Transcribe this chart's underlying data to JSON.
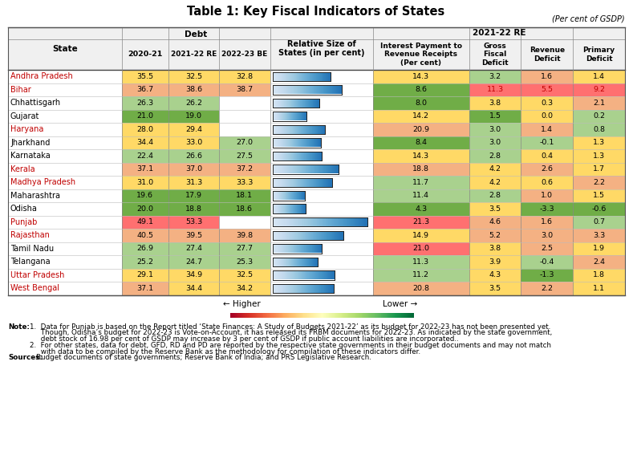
{
  "title": "Table 1: Key Fiscal Indicators of States",
  "subtitle": "(Per cent of GSDP)",
  "states": [
    "Andhra Pradesh",
    "Bihar",
    "Chhattisgarh",
    "Gujarat",
    "Haryana",
    "Jharkhand",
    "Karnataka",
    "Kerala",
    "Madhya Pradesh",
    "Maharashtra",
    "Odisha",
    "Punjab",
    "Rajasthan",
    "Tamil Nadu",
    "Telangana",
    "Uttar Pradesh",
    "West Bengal"
  ],
  "state_colors": [
    "#c00000",
    "#c00000",
    "#000000",
    "#000000",
    "#c00000",
    "#000000",
    "#000000",
    "#c00000",
    "#c00000",
    "#000000",
    "#000000",
    "#c00000",
    "#c00000",
    "#000000",
    "#000000",
    "#c00000",
    "#c00000"
  ],
  "debt_2021": [
    35.5,
    36.7,
    26.3,
    21.0,
    28.0,
    34.4,
    22.4,
    37.1,
    31.0,
    19.6,
    20.0,
    49.1,
    40.5,
    26.9,
    25.2,
    29.1,
    37.1
  ],
  "debt_2122": [
    32.5,
    38.6,
    26.2,
    19.0,
    29.4,
    33.0,
    26.6,
    37.0,
    31.3,
    17.9,
    18.8,
    53.3,
    39.5,
    27.4,
    24.7,
    34.9,
    34.4
  ],
  "debt_2223": [
    32.8,
    38.7,
    null,
    null,
    null,
    27.0,
    27.5,
    37.2,
    33.3,
    18.1,
    18.6,
    null,
    39.8,
    27.7,
    25.3,
    32.5,
    34.2
  ],
  "bar_values": [
    32.8,
    38.7,
    26.2,
    19.0,
    29.4,
    27.0,
    27.5,
    37.2,
    33.3,
    18.1,
    18.6,
    53.3,
    39.8,
    27.7,
    25.3,
    34.9,
    34.2
  ],
  "interest_payment": [
    14.3,
    8.6,
    8.0,
    14.2,
    20.9,
    8.4,
    14.3,
    18.8,
    11.7,
    11.4,
    4.3,
    21.3,
    14.9,
    21.0,
    11.3,
    11.2,
    20.8
  ],
  "gross_fiscal": [
    3.2,
    11.3,
    3.8,
    1.5,
    3.0,
    3.0,
    2.8,
    4.2,
    4.2,
    2.8,
    3.5,
    4.6,
    5.2,
    3.8,
    3.9,
    4.3,
    3.5
  ],
  "revenue_deficit": [
    1.6,
    5.5,
    0.3,
    0.0,
    1.4,
    -0.1,
    0.4,
    2.6,
    0.6,
    1.0,
    -3.3,
    1.6,
    3.0,
    2.5,
    -0.4,
    -1.3,
    2.2
  ],
  "primary_deficit": [
    1.4,
    9.2,
    2.1,
    0.2,
    0.8,
    1.3,
    1.3,
    1.7,
    2.2,
    1.5,
    -0.6,
    0.7,
    3.3,
    1.9,
    2.4,
    1.8,
    1.1
  ],
  "note_line1": "1.  Data for Punjab is based on the Report titled ‘State Finances: A Study of Budgets 2021-22’ as its budget for 2022-23 has not been presented yet.",
  "note_line2": "     Though, Odisha’s budget for 2022-23 is Vote-on-Account, it has released its FRBM documents for 2022-23. As indicated by the state government,",
  "note_line3": "     debt stock of 16.98 per cent of GSDP may increase by 3 per cent of GSDP if public account liabilities are incorporated..",
  "note_line4": "2.  For other states, data for debt, GFD, RD and PD are reported by the respective state governments in their budget documents and may not match",
  "note_line5": "     with data to be compiled by the Reserve Bank as the methodology for compilation of these indicators differ.",
  "sources": "Budget documents of state governments; Reserve Bank of India; and PRS Legislative Research."
}
